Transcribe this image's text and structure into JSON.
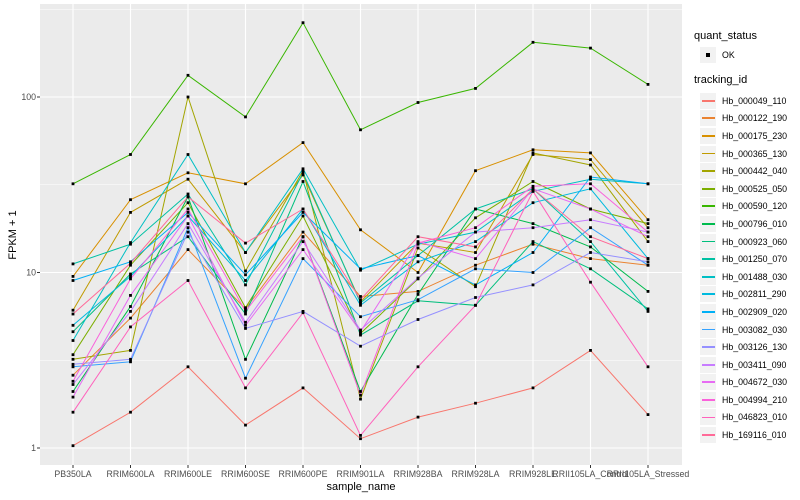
{
  "figure": {
    "background": "#FFFFFF",
    "panel_background": "#EBEBEB",
    "grid_color": "#FFFFFF",
    "axis_text_color": "#4D4D4D",
    "title_color": "#000000",
    "legend_key_background": "#F2F2F2",
    "point_color": "#000000"
  },
  "legend": {
    "quant_status_title": "quant_status",
    "ok_label": "OK",
    "tracking_id_title": "tracking_id"
  },
  "chart_data": {
    "type": "line",
    "title": "",
    "xlabel": "sample_name",
    "ylabel": "FPKM + 1",
    "y_scale": "log10",
    "ylim": [
      0.8,
      340
    ],
    "grid": "on",
    "legend_position": "right",
    "point_marker_label": "OK",
    "y_major_ticks": [
      {
        "label": "1",
        "value": 1
      },
      {
        "label": "10",
        "value": 10
      },
      {
        "label": "100",
        "value": 100
      }
    ],
    "y_minor_values": [
      3.1623,
      31.623,
      316.23
    ],
    "categories": [
      "PB350LA",
      "RRIM600LA",
      "RRIM600LE",
      "RRIM600SE",
      "RRIM600PE",
      "RRIM901LA",
      "RRIM928BA",
      "RRIM928LA",
      "RRIM928LE",
      "RRII105LA_Control",
      "RRII105LA_Stressed"
    ],
    "series": [
      {
        "name": "Hb_000049_110",
        "color": "#F8766D",
        "values": [
          1.03,
          1.6,
          2.9,
          1.35,
          2.2,
          1.13,
          1.5,
          1.8,
          2.2,
          3.6,
          1.55
        ]
      },
      {
        "name": "Hb_000122_190",
        "color": "#EA8331",
        "values": [
          2.6,
          5.5,
          13.5,
          6.2,
          17,
          7.3,
          7.8,
          11,
          14.5,
          12,
          11
        ]
      },
      {
        "name": "Hb_000175_230",
        "color": "#D89000",
        "values": [
          9.5,
          26,
          37,
          32,
          55,
          17.5,
          10,
          38,
          50,
          48,
          20
        ]
      },
      {
        "name": "Hb_000365_130",
        "color": "#C09B00",
        "values": [
          6.1,
          22,
          34,
          13,
          36,
          6.8,
          14.7,
          13,
          47,
          44,
          18
        ]
      },
      {
        "name": "Hb_000442_040",
        "color": "#A3A500",
        "values": [
          3.2,
          3.6,
          100,
          10.2,
          38,
          1.9,
          13.8,
          8.3,
          48,
          41,
          15
        ]
      },
      {
        "name": "Hb_000525_050",
        "color": "#7CAE00",
        "values": [
          3.4,
          11,
          25,
          6.3,
          21,
          4.5,
          9.2,
          20.5,
          33,
          23,
          19
        ]
      },
      {
        "name": "Hb_000590_120",
        "color": "#39B600",
        "values": [
          32,
          47,
          133,
          77,
          265,
          65,
          93,
          112,
          205,
          190,
          118
        ]
      },
      {
        "name": "Hb_000796_010",
        "color": "#00BB4E",
        "values": [
          2.1,
          6.4,
          27,
          3.2,
          16,
          2.1,
          7.5,
          23,
          19,
          14,
          7.8
        ]
      },
      {
        "name": "Hb_000923_060",
        "color": "#00BF7D",
        "values": [
          4.6,
          9.8,
          16,
          5.8,
          33,
          4.4,
          6.9,
          6.5,
          15,
          10.5,
          6.2
        ]
      },
      {
        "name": "Hb_001250_070",
        "color": "#00C1A3",
        "values": [
          11.2,
          14.5,
          28,
          8.5,
          37,
          6.7,
          12.5,
          23,
          30,
          15,
          6
        ]
      },
      {
        "name": "Hb_001488_030",
        "color": "#00BFC4",
        "values": [
          4.1,
          14.8,
          47,
          13,
          39,
          10.3,
          14.5,
          17,
          29,
          34,
          32
        ]
      },
      {
        "name": "Hb_002811_290",
        "color": "#00BADE",
        "values": [
          5,
          9.5,
          21,
          9,
          23,
          6.5,
          11.5,
          15,
          25,
          30,
          12
        ]
      },
      {
        "name": "Hb_002909_020",
        "color": "#00B0F6",
        "values": [
          9,
          11.5,
          22,
          9.7,
          22,
          10.5,
          12.5,
          8.5,
          13,
          35,
          32
        ]
      },
      {
        "name": "Hb_003082_030",
        "color": "#35A2FF",
        "values": [
          2.9,
          3.1,
          18,
          2.5,
          12,
          5.6,
          7,
          10.5,
          10,
          18,
          11
        ]
      },
      {
        "name": "Hb_003126_130",
        "color": "#9590FF",
        "values": [
          3,
          3.2,
          17,
          4.8,
          6,
          3.8,
          5.4,
          7.2,
          8.5,
          13,
          11.5
        ]
      },
      {
        "name": "Hb_003411_090",
        "color": "#C77CFF",
        "values": [
          2.3,
          6,
          19,
          5.2,
          15,
          4.7,
          9.3,
          17,
          18,
          20,
          17
        ]
      },
      {
        "name": "Hb_004672_030",
        "color": "#E76BF3",
        "values": [
          1.95,
          7.4,
          21,
          5,
          13.5,
          4.6,
          15,
          12,
          30,
          23,
          16
        ]
      },
      {
        "name": "Hb_004994_210",
        "color": "#FA62DB",
        "values": [
          2.4,
          9.2,
          23,
          6,
          16,
          2.0,
          14.7,
          18,
          31,
          32,
          17
        ]
      },
      {
        "name": "Hb_046823_010",
        "color": "#FF62BC",
        "values": [
          1.6,
          4.9,
          9,
          2.2,
          5.9,
          1.18,
          2.9,
          6.5,
          29,
          8.8,
          2.9
        ]
      },
      {
        "name": "Hb_169116_010",
        "color": "#FF6A98",
        "values": [
          5.8,
          11.3,
          27,
          14.7,
          23,
          7,
          16,
          14,
          30,
          16,
          12
        ]
      }
    ]
  }
}
